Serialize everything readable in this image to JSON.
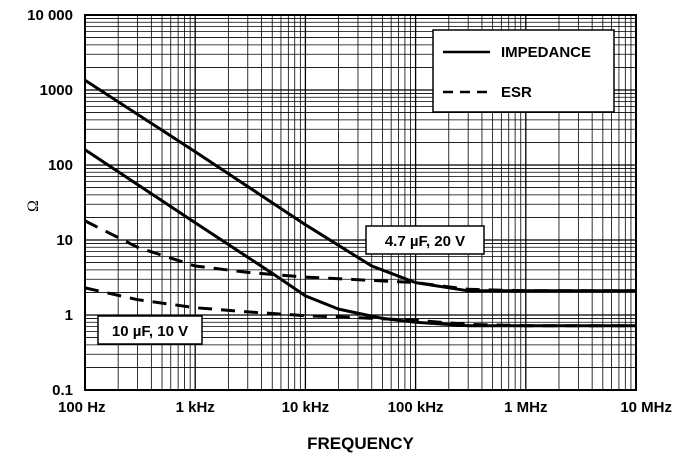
{
  "chart_data": {
    "type": "line",
    "xlabel": "FREQUENCY",
    "ylabel": "Ω",
    "x_scale": "log",
    "y_scale": "log",
    "xlim": [
      100,
      10000000
    ],
    "ylim": [
      0.1,
      10000
    ],
    "x_ticks": [
      "100 Hz",
      "1 kHz",
      "10 kHz",
      "100 kHz",
      "1 MHz",
      "10 MHz"
    ],
    "y_ticks": [
      "0.1",
      "1",
      "10",
      "100",
      "1000",
      "10 000"
    ],
    "grid": true,
    "legend_position": "top-right",
    "legend": [
      {
        "label": "IMPEDANCE",
        "style": "solid"
      },
      {
        "label": "ESR",
        "style": "dashed"
      }
    ],
    "series": [
      {
        "group": "4.7 µF, 20 V",
        "kind": "IMPEDANCE",
        "style": "solid",
        "x": [
          100,
          1000,
          10000,
          40000,
          100000,
          300000,
          1000000,
          10000000
        ],
        "y": [
          1350,
          150,
          16,
          4.5,
          2.7,
          2.1,
          2.1,
          2.1
        ]
      },
      {
        "group": "4.7 µF, 20 V",
        "kind": "ESR",
        "style": "dashed",
        "x": [
          100,
          300,
          1000,
          3000,
          10000,
          100000,
          300000,
          1000000,
          10000000
        ],
        "y": [
          18,
          8,
          4.5,
          3.7,
          3.2,
          2.7,
          2.2,
          2.1,
          2.1
        ]
      },
      {
        "group": "10 µF, 10 V",
        "kind": "IMPEDANCE",
        "style": "solid",
        "x": [
          100,
          1000,
          5000,
          10000,
          20000,
          50000,
          100000,
          300000,
          1000000,
          10000000
        ],
        "y": [
          160,
          17,
          3.6,
          1.8,
          1.2,
          0.9,
          0.8,
          0.72,
          0.72,
          0.72
        ]
      },
      {
        "group": "10 µF, 10 V",
        "kind": "ESR",
        "style": "dashed",
        "x": [
          100,
          300,
          1000,
          3000,
          10000,
          30000,
          100000,
          300000,
          1000000,
          10000000
        ],
        "y": [
          2.3,
          1.6,
          1.25,
          1.1,
          0.98,
          0.92,
          0.85,
          0.75,
          0.72,
          0.72
        ]
      }
    ],
    "annotations": [
      {
        "text": "4.7 µF, 20 V",
        "x": 130000,
        "y": 10
      },
      {
        "text": "10 µF, 10 V",
        "x": 900,
        "y": 0.72
      }
    ]
  }
}
